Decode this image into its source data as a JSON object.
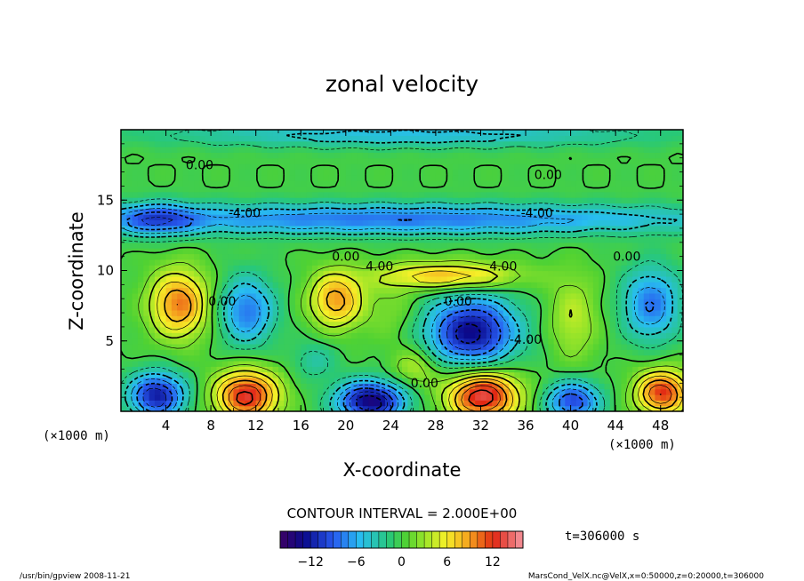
{
  "chart_data": {
    "type": "heatmap",
    "title": "zonal velocity",
    "xlabel": "X-coordinate",
    "ylabel": "Z-coordinate",
    "x_unit": "(×1000 m)",
    "y_unit": "(×1000 m)",
    "xlim": [
      0,
      50
    ],
    "ylim": [
      0,
      20
    ],
    "x_ticks": [
      "4",
      "8",
      "12",
      "16",
      "20",
      "24",
      "28",
      "32",
      "36",
      "40",
      "44",
      "48"
    ],
    "y_ticks": [
      "5",
      "10",
      "15"
    ],
    "contour_interval_text": "CONTOUR INTERVAL = 2.000E+00",
    "contour_labels": [
      "0.00",
      "0.00",
      "-4.00",
      "-4.00",
      "0.00",
      "0.00",
      "4.00",
      "4.00",
      "0.00",
      "0.00",
      "-4.00",
      "0.00"
    ],
    "colorbar": {
      "min": -16,
      "max": 16,
      "ticks": [
        "-12",
        "-6",
        "0",
        "6",
        "12"
      ]
    },
    "time_label": "t=306000 s",
    "field": [
      {
        "x": 5,
        "z": 7.5,
        "value": 10,
        "sx": 2.6,
        "sz": 2.4
      },
      {
        "x": 11,
        "z": 7.0,
        "value": -8,
        "sx": 2.5,
        "sz": 2.4
      },
      {
        "x": 19,
        "z": 7.8,
        "value": 9,
        "sx": 2.4,
        "sz": 2.0
      },
      {
        "x": 24,
        "z": 7.0,
        "value": 2,
        "sx": 2.2,
        "sz": 2.4
      },
      {
        "x": 31,
        "z": 5.5,
        "value": -13,
        "sx": 4.0,
        "sz": 2.5
      },
      {
        "x": 40,
        "z": 6.5,
        "value": 4,
        "sx": 2.2,
        "sz": 3.0
      },
      {
        "x": 47,
        "z": 7.5,
        "value": -8,
        "sx": 2.6,
        "sz": 2.6
      },
      {
        "x": 29,
        "z": 9.5,
        "value": 8,
        "sx": 6.0,
        "sz": 1.0
      },
      {
        "x": 24,
        "z": 13.5,
        "value": -8,
        "sx": 30.0,
        "sz": 1.1
      },
      {
        "x": 3,
        "z": 13.5,
        "value": -6,
        "sx": 3.5,
        "sz": 1.2
      },
      {
        "x": 25,
        "z": 19.5,
        "value": -5,
        "sx": 22.0,
        "sz": 0.9
      },
      {
        "x": 3,
        "z": 1.0,
        "value": -12,
        "sx": 2.5,
        "sz": 1.6
      },
      {
        "x": 11,
        "z": 1.0,
        "value": 13,
        "sx": 2.8,
        "sz": 1.8
      },
      {
        "x": 22,
        "z": 0.6,
        "value": -14,
        "sx": 3.0,
        "sz": 1.4
      },
      {
        "x": 32,
        "z": 1.0,
        "value": 14,
        "sx": 3.2,
        "sz": 1.8
      },
      {
        "x": 40,
        "z": 0.6,
        "value": -10,
        "sx": 2.4,
        "sz": 1.4
      },
      {
        "x": 48,
        "z": 1.2,
        "value": 12,
        "sx": 2.4,
        "sz": 1.6
      },
      {
        "x": 17,
        "z": 3.5,
        "value": -3,
        "sx": 2.0,
        "sz": 1.4
      },
      {
        "x": 26,
        "z": 3.0,
        "value": 4,
        "sx": 2.0,
        "sz": 1.4
      }
    ]
  },
  "footer": {
    "left": "/usr/bin/gpview  2008-11-21",
    "right": "MarsCond_VelX.nc@VelX,x=0:50000,z=0:20000,t=306000"
  }
}
